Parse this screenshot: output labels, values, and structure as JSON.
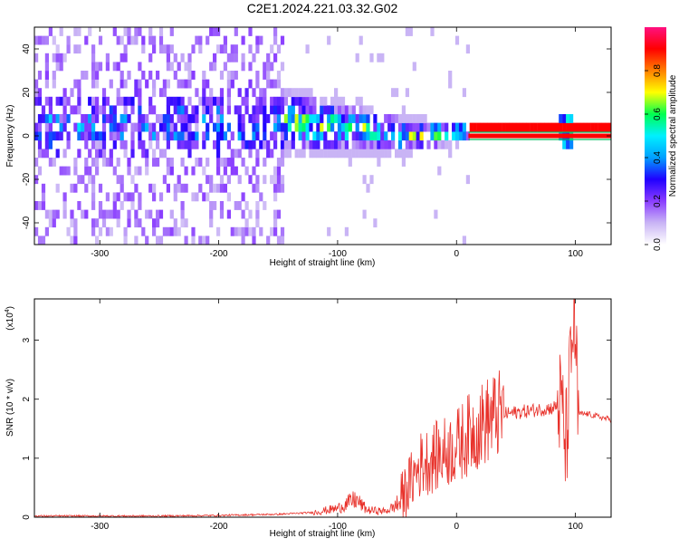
{
  "title": "C2E1.2024.221.03.32.G02",
  "chart_data": [
    {
      "type": "heatmap",
      "xlabel": "Height of straight line (km)",
      "ylabel": "Frequency (Hz)",
      "xlim": [
        -355,
        130
      ],
      "ylim": [
        -50,
        50
      ],
      "x_ticks": [
        -300,
        -200,
        -100,
        0,
        100
      ],
      "y_ticks": [
        -40,
        -20,
        0,
        20,
        40
      ],
      "colorbar": {
        "label": "Normalized spectral amplitude",
        "range": [
          0,
          1
        ],
        "ticks": [
          "0.0",
          "0.2",
          "0.4",
          "0.6",
          "0.8"
        ],
        "tick_values": [
          0,
          0.2,
          0.4,
          0.6,
          0.8
        ],
        "colormap": [
          "#ffffff",
          "#c9b4f5",
          "#8a3dff",
          "#2000ff",
          "#00a0ff",
          "#00f0ff",
          "#00ff50",
          "#ffff00",
          "#ff8000",
          "#ff0000",
          "#ff1080"
        ]
      },
      "description_bands": [
        {
          "x": [
            -355,
            -145
          ],
          "pattern": "broadband scattered noise across full frequency range"
        },
        {
          "x": [
            -150,
            10
          ],
          "pattern": "energy concentrated near 0 Hz, band narrowing toward 0 km"
        },
        {
          "x": [
            10,
            130
          ],
          "pattern": "narrow strong line at 0 Hz"
        }
      ]
    },
    {
      "type": "line",
      "xlabel": "Height of straight line (km)",
      "ylabel": "SNR (10 * v/v)",
      "multiplier": "(x10",
      "multiplier_exp": "4",
      "multiplier_close": ")",
      "xlim": [
        -355,
        130
      ],
      "ylim": [
        0,
        3.7
      ],
      "x_ticks": [
        -300,
        -200,
        -100,
        0,
        100
      ],
      "y_ticks": [
        0,
        1,
        2,
        3
      ],
      "series": [
        {
          "color": "#e8312a",
          "points": [
            [
              -355,
              0.02
            ],
            [
              -300,
              0.02
            ],
            [
              -250,
              0.02
            ],
            [
              -200,
              0.03
            ],
            [
              -150,
              0.05
            ],
            [
              -120,
              0.08
            ],
            [
              -100,
              0.15
            ],
            [
              -85,
              0.3
            ],
            [
              -75,
              0.12
            ],
            [
              -60,
              0.1
            ],
            [
              -50,
              0.2
            ],
            [
              -40,
              0.55
            ],
            [
              -30,
              0.9
            ],
            [
              -20,
              1.0
            ],
            [
              -10,
              1.1
            ],
            [
              0,
              1.2
            ],
            [
              10,
              1.4
            ],
            [
              20,
              1.55
            ],
            [
              30,
              1.7
            ],
            [
              40,
              1.75
            ],
            [
              60,
              1.8
            ],
            [
              80,
              1.85
            ],
            [
              88,
              1.9
            ],
            [
              92,
              1.2
            ],
            [
              96,
              2.5
            ],
            [
              99,
              3.6
            ],
            [
              102,
              1.75
            ],
            [
              110,
              1.75
            ],
            [
              120,
              1.7
            ],
            [
              130,
              1.65
            ]
          ]
        }
      ]
    }
  ]
}
